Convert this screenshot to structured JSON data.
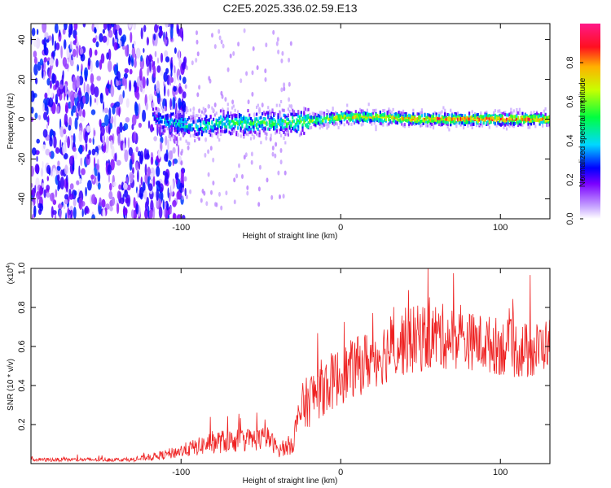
{
  "title": "C2E5.2025.336.02.59.E13",
  "chart_data": [
    {
      "type": "heatmap",
      "title": "C2E5.2025.336.02.59.E13",
      "xlabel": "Height of straight line (km)",
      "ylabel": "Frequency (Hz)",
      "xlim": [
        -194,
        131
      ],
      "ylim": [
        -50,
        48
      ],
      "xticks": [
        -100,
        0,
        100
      ],
      "xtick_labels": [
        "-100",
        "0",
        "100"
      ],
      "yticks": [
        -40,
        -20,
        0,
        20,
        40
      ],
      "ytick_labels": [
        "-40",
        "-20",
        "0",
        "20",
        "40"
      ],
      "colorbar": {
        "label": "Normalized spectral amplitude",
        "range": [
          0,
          1
        ],
        "ticks": [
          0.0,
          0.2,
          0.4,
          0.6,
          0.8
        ],
        "tick_labels": [
          "0.0",
          "0.2",
          "0.4",
          "0.6",
          "0.8"
        ],
        "colors": [
          "#ffffff",
          "#c9a8ff",
          "#7a00ff",
          "#0000ff",
          "#00d8ff",
          "#00ff40",
          "#c8ff00",
          "#ffb000",
          "#ff1020",
          "#ff1888"
        ]
      },
      "ridge": [
        {
          "x": -115,
          "freq": 0,
          "amp": 0.35
        },
        {
          "x": -100,
          "freq": -3,
          "amp": 0.42
        },
        {
          "x": -90,
          "freq": -4,
          "amp": 0.45
        },
        {
          "x": -80,
          "freq": -2,
          "amp": 0.48
        },
        {
          "x": -60,
          "freq": -2,
          "amp": 0.5
        },
        {
          "x": -40,
          "freq": -2,
          "amp": 0.52
        },
        {
          "x": -20,
          "freq": -1,
          "amp": 0.6
        },
        {
          "x": 0,
          "freq": 1,
          "amp": 0.7
        },
        {
          "x": 20,
          "freq": 1,
          "amp": 0.75
        },
        {
          "x": 50,
          "freq": 0,
          "amp": 0.8
        },
        {
          "x": 80,
          "freq": 0,
          "amp": 0.85
        },
        {
          "x": 110,
          "freq": 0,
          "amp": 0.88
        },
        {
          "x": 131,
          "freq": 0,
          "amp": 0.8
        }
      ],
      "noise_region": {
        "x_from": -194,
        "x_to": -105,
        "amp": 0.3
      }
    },
    {
      "type": "line",
      "xlabel": "Height of straight line (km)",
      "ylabel": "SNR (10 * v/v)",
      "scale_label": "(x10",
      "scale_exp": "4",
      "scale_close": ")",
      "xlim": [
        -194,
        131
      ],
      "ylim": [
        0,
        1.0
      ],
      "xticks": [
        -100,
        0,
        100
      ],
      "xtick_labels": [
        "-100",
        "0",
        "100"
      ],
      "yticks": [
        0.2,
        0.4,
        0.6,
        0.8,
        1.0
      ],
      "ytick_labels": [
        "0.2",
        "0.4",
        "0.6",
        "0.8",
        "1.0"
      ],
      "color": "#ee2222",
      "envelope": [
        {
          "x": -194,
          "base": 0.01,
          "amp": 0.02
        },
        {
          "x": -130,
          "base": 0.01,
          "amp": 0.02
        },
        {
          "x": -110,
          "base": 0.02,
          "amp": 0.05
        },
        {
          "x": -90,
          "base": 0.04,
          "amp": 0.09
        },
        {
          "x": -80,
          "base": 0.05,
          "amp": 0.12
        },
        {
          "x": -60,
          "base": 0.06,
          "amp": 0.12
        },
        {
          "x": -45,
          "base": 0.07,
          "amp": 0.12
        },
        {
          "x": -38,
          "base": 0.03,
          "amp": 0.06
        },
        {
          "x": -30,
          "base": 0.05,
          "amp": 0.12
        },
        {
          "x": -25,
          "base": 0.15,
          "amp": 0.25
        },
        {
          "x": -15,
          "base": 0.22,
          "amp": 0.3
        },
        {
          "x": 0,
          "base": 0.3,
          "amp": 0.3
        },
        {
          "x": 20,
          "base": 0.38,
          "amp": 0.32
        },
        {
          "x": 40,
          "base": 0.45,
          "amp": 0.35
        },
        {
          "x": 60,
          "base": 0.48,
          "amp": 0.35
        },
        {
          "x": 80,
          "base": 0.48,
          "amp": 0.3
        },
        {
          "x": 100,
          "base": 0.45,
          "amp": 0.3
        },
        {
          "x": 120,
          "base": 0.42,
          "amp": 0.3
        },
        {
          "x": 131,
          "base": 0.5,
          "amp": 0.25
        }
      ]
    }
  ]
}
